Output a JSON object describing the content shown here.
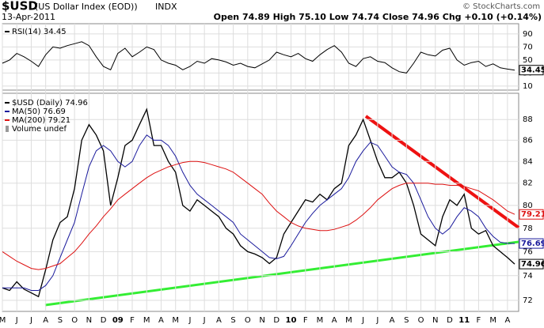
{
  "header": {
    "symbol": "$USD",
    "name": "(US Dollar Index (EOD))",
    "exchange": "INDX",
    "date": "13-Apr-2011",
    "quote": "Open 74.89 High 75.10 Low 74.74 Close 74.96 Chg +0.10 (+0.14%)",
    "credit": "© StockCharts.com"
  },
  "chart_data": [
    {
      "type": "line",
      "ylim": [
        5,
        102
      ],
      "yticks": [
        10,
        30,
        50,
        70,
        90
      ],
      "grid": true,
      "color": "#000000",
      "series": [
        {
          "name": "RSI(14) 34.45",
          "color": "#000000",
          "last_label": "34.45",
          "values": [
            45,
            50,
            60,
            55,
            48,
            40,
            58,
            70,
            68,
            72,
            75,
            78,
            72,
            55,
            40,
            35,
            60,
            68,
            55,
            62,
            70,
            66,
            50,
            45,
            42,
            35,
            40,
            48,
            45,
            52,
            50,
            47,
            42,
            45,
            40,
            38,
            44,
            50,
            62,
            58,
            55,
            60,
            52,
            48,
            58,
            66,
            72,
            62,
            45,
            40,
            52,
            55,
            48,
            46,
            38,
            32,
            30,
            45,
            62,
            58,
            56,
            65,
            68,
            50,
            42,
            46,
            48,
            40,
            44,
            38,
            36,
            34.45
          ]
        }
      ]
    },
    {
      "type": "line",
      "log_scale": true,
      "ylim": [
        71.25,
        90.6
      ],
      "yticks": [
        72,
        74,
        76,
        78,
        80,
        82,
        84,
        86,
        88
      ],
      "grid": true,
      "note": "Volume undef",
      "categories": [
        "M",
        null,
        "J",
        null,
        "J",
        null,
        "A",
        null,
        "S",
        null,
        "O",
        null,
        "N",
        null,
        "D",
        null,
        "09",
        null,
        "F",
        null,
        "M",
        null,
        "A",
        null,
        "M",
        null,
        "J",
        null,
        "J",
        null,
        "A",
        null,
        "S",
        null,
        "O",
        null,
        "N",
        null,
        "D",
        null,
        "10",
        null,
        "F",
        null,
        "M",
        null,
        "A",
        null,
        "M",
        null,
        "J",
        null,
        "J",
        null,
        "A",
        null,
        "S",
        null,
        "O",
        null,
        "N",
        null,
        "D",
        null,
        "11",
        null,
        "F",
        null,
        "M",
        null,
        "A",
        null
      ],
      "series": [
        {
          "name": "$USD (Daily) 74.96",
          "color": "#000000",
          "last_label": "74.96",
          "values": [
            73.0,
            72.8,
            73.5,
            72.9,
            72.6,
            72.3,
            74.5,
            77.0,
            78.5,
            79.0,
            81.5,
            86.0,
            87.5,
            86.5,
            85.0,
            80.0,
            82.5,
            85.5,
            86.0,
            87.5,
            89.0,
            85.5,
            85.5,
            84.0,
            83.0,
            80.0,
            79.5,
            80.5,
            80.0,
            79.5,
            79.0,
            78.0,
            77.5,
            76.5,
            76.0,
            75.8,
            75.5,
            75.0,
            75.5,
            77.5,
            78.5,
            79.5,
            80.5,
            80.3,
            81.0,
            80.5,
            81.5,
            82.0,
            85.5,
            86.5,
            88.0,
            86.0,
            84.0,
            82.5,
            82.5,
            83.0,
            82.0,
            80.0,
            77.5,
            77.0,
            76.5,
            79.0,
            80.5,
            80.0,
            81.0,
            78.0,
            77.5,
            77.8,
            76.5,
            76.0,
            75.5,
            74.96
          ]
        },
        {
          "name": "MA(50) 76.69",
          "color": "#1a1a9c",
          "last_label": "76.69",
          "values": [
            73.0,
            73.0,
            73.0,
            73.0,
            72.8,
            72.8,
            73.2,
            74.0,
            75.5,
            77.0,
            78.5,
            81.0,
            83.5,
            85.0,
            85.5,
            85.0,
            84.0,
            83.5,
            84.0,
            85.5,
            86.5,
            86.0,
            86.0,
            85.5,
            84.5,
            83.0,
            81.8,
            81.0,
            80.5,
            80.0,
            79.5,
            79.0,
            78.5,
            77.5,
            77.0,
            76.5,
            76.0,
            75.5,
            75.4,
            75.6,
            76.5,
            77.5,
            78.5,
            79.3,
            80.0,
            80.5,
            81.0,
            81.5,
            82.5,
            84.0,
            85.0,
            85.8,
            85.5,
            84.5,
            83.5,
            83.0,
            82.8,
            82.0,
            80.5,
            79.0,
            78.0,
            77.5,
            78.0,
            79.0,
            79.8,
            79.5,
            79.0,
            78.0,
            77.3,
            76.8,
            76.7,
            76.69
          ]
        },
        {
          "name": "MA(200) 79.21",
          "color": "#dd1111",
          "last_label": "79.21",
          "values": [
            76.0,
            75.6,
            75.2,
            74.9,
            74.6,
            74.5,
            74.6,
            74.8,
            75.0,
            75.5,
            76.0,
            76.7,
            77.5,
            78.2,
            79.0,
            79.7,
            80.5,
            81.0,
            81.5,
            82.0,
            82.5,
            82.9,
            83.2,
            83.5,
            83.7,
            83.9,
            84.0,
            84.0,
            83.9,
            83.7,
            83.5,
            83.3,
            83.0,
            82.5,
            82.0,
            81.5,
            81.0,
            80.2,
            79.5,
            79.0,
            78.5,
            78.2,
            78.0,
            77.9,
            77.8,
            77.8,
            77.9,
            78.1,
            78.3,
            78.7,
            79.2,
            79.8,
            80.5,
            81.0,
            81.5,
            81.8,
            82.0,
            82.0,
            82.0,
            82.0,
            81.9,
            81.9,
            81.8,
            81.8,
            81.7,
            81.5,
            81.3,
            80.9,
            80.5,
            80.0,
            79.5,
            79.21
          ]
        }
      ]
    }
  ]
}
